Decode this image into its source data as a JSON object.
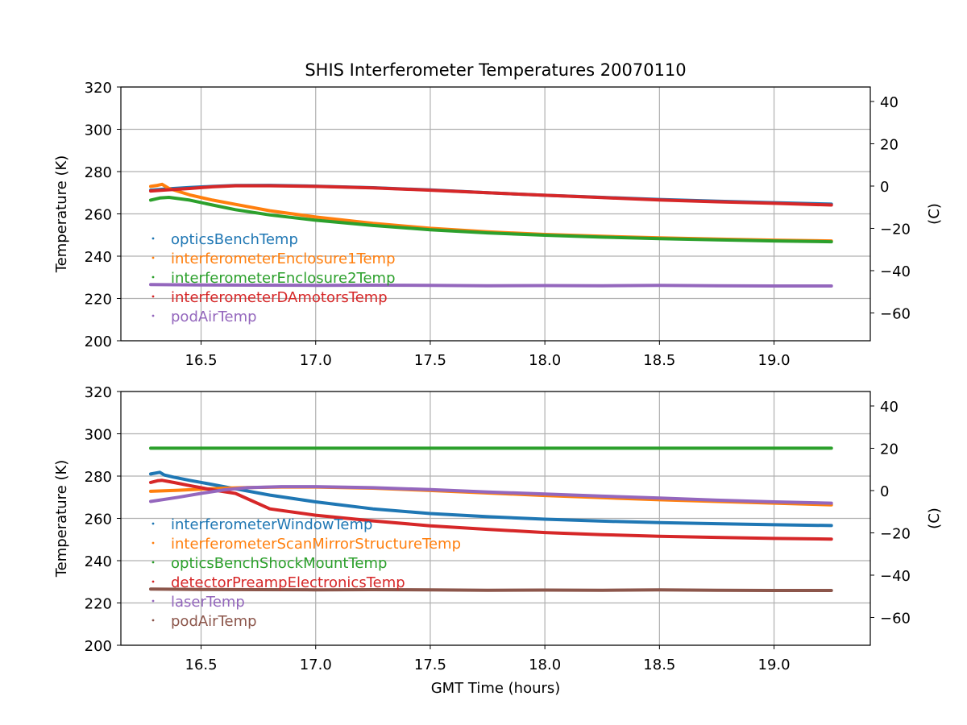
{
  "title": "SHIS Interferometer Temperatures 20070110",
  "xlabel": "GMT Time (hours)",
  "chart_data": [
    {
      "type": "scatter",
      "ylabel": "Temperature (K)",
      "ylabel_right": "(C)",
      "xlim": [
        16.15,
        19.42
      ],
      "ylim": [
        200,
        320
      ],
      "xticks": [
        "16.5",
        "17.0",
        "17.5",
        "18.0",
        "18.5",
        "19.0"
      ],
      "yticks": [
        "200",
        "220",
        "240",
        "260",
        "280",
        "300",
        "320"
      ],
      "yticks_right": [
        "−60",
        "−40",
        "−20",
        "0",
        "20",
        "40"
      ],
      "grid": true,
      "legend_position": "lower-left",
      "series": [
        {
          "name": "opticsBenchTemp",
          "color": "#1f77b4",
          "x": [
            16.28,
            16.35,
            16.45,
            16.55,
            16.65,
            16.8,
            17.0,
            17.25,
            17.5,
            17.75,
            18.0,
            18.25,
            18.5,
            18.75,
            19.0,
            19.25
          ],
          "y": [
            271.2,
            271.8,
            272.5,
            273.0,
            273.4,
            273.5,
            273.1,
            272.4,
            271.3,
            270.0,
            268.8,
            267.8,
            266.8,
            266.0,
            265.3,
            264.6
          ]
        },
        {
          "name": "interferometerEnclosure1Temp",
          "color": "#ff7f0e",
          "x": [
            16.28,
            16.31,
            16.33,
            16.36,
            16.45,
            16.55,
            16.65,
            16.8,
            17.0,
            17.25,
            17.5,
            17.75,
            18.0,
            18.25,
            18.5,
            18.75,
            19.0,
            19.25
          ],
          "y": [
            273.0,
            273.5,
            274.0,
            272.0,
            269.0,
            266.5,
            264.5,
            261.5,
            258.5,
            255.5,
            253.2,
            251.5,
            250.3,
            249.4,
            248.7,
            248.1,
            247.6,
            247.2
          ]
        },
        {
          "name": "interferometerEnclosure2Temp",
          "color": "#2ca02c",
          "x": [
            16.28,
            16.32,
            16.36,
            16.45,
            16.55,
            16.65,
            16.8,
            17.0,
            17.25,
            17.5,
            17.75,
            18.0,
            18.25,
            18.5,
            18.75,
            19.0,
            19.25
          ],
          "y": [
            266.5,
            267.5,
            267.8,
            266.5,
            264.2,
            262.0,
            259.5,
            257.0,
            254.5,
            252.5,
            251.0,
            249.9,
            249.0,
            248.3,
            247.7,
            247.2,
            246.8
          ]
        },
        {
          "name": "interferometerDAmotorsTemp",
          "color": "#d62728",
          "x": [
            16.28,
            16.35,
            16.45,
            16.55,
            16.65,
            16.8,
            17.0,
            17.25,
            17.5,
            17.75,
            18.0,
            18.25,
            18.5,
            18.75,
            19.0,
            19.25
          ],
          "y": [
            270.8,
            271.3,
            272.0,
            272.8,
            273.3,
            273.3,
            273.0,
            272.3,
            271.2,
            270.0,
            268.8,
            267.7,
            266.6,
            265.7,
            265.0,
            264.2
          ]
        },
        {
          "name": "podAirTemp",
          "color": "#9467bd",
          "x": [
            16.28,
            16.5,
            16.75,
            17.0,
            17.25,
            17.5,
            17.75,
            18.0,
            18.25,
            18.5,
            18.75,
            19.0,
            19.25
          ],
          "y": [
            226.6,
            226.4,
            226.3,
            226.2,
            226.3,
            226.2,
            226.0,
            226.1,
            226.0,
            226.2,
            226.0,
            225.9,
            225.9
          ]
        }
      ]
    },
    {
      "type": "scatter",
      "ylabel": "Temperature (K)",
      "ylabel_right": "(C)",
      "xlim": [
        16.15,
        19.42
      ],
      "ylim": [
        200,
        320
      ],
      "xticks": [
        "16.5",
        "17.0",
        "17.5",
        "18.0",
        "18.5",
        "19.0"
      ],
      "yticks": [
        "200",
        "220",
        "240",
        "260",
        "280",
        "300",
        "320"
      ],
      "yticks_right": [
        "−60",
        "−40",
        "−20",
        "0",
        "20",
        "40"
      ],
      "grid": true,
      "legend_position": "lower-left",
      "series": [
        {
          "name": "interferometerWindowTemp",
          "color": "#1f77b4",
          "x": [
            16.28,
            16.32,
            16.34,
            16.38,
            16.45,
            16.55,
            16.65,
            16.8,
            17.0,
            17.25,
            17.5,
            17.75,
            18.0,
            18.25,
            18.5,
            18.75,
            19.0,
            19.25
          ],
          "y": [
            281.0,
            281.8,
            280.5,
            279.5,
            278.0,
            276.0,
            274.0,
            271.0,
            267.8,
            264.5,
            262.3,
            260.8,
            259.6,
            258.7,
            258.0,
            257.5,
            257.0,
            256.6
          ]
        },
        {
          "name": "interferometerScanMirrorStructureTemp",
          "color": "#ff7f0e",
          "x": [
            16.28,
            16.4,
            16.5,
            16.6,
            16.7,
            16.85,
            17.0,
            17.25,
            17.5,
            17.75,
            18.0,
            18.25,
            18.5,
            18.75,
            19.0,
            19.25
          ],
          "y": [
            272.8,
            273.3,
            273.8,
            274.3,
            274.6,
            274.8,
            274.8,
            274.3,
            273.2,
            272.0,
            270.8,
            269.8,
            268.8,
            268.0,
            267.2,
            266.4
          ]
        },
        {
          "name": "opticsBenchShockMountTemp",
          "color": "#2ca02c",
          "x": [
            16.28,
            16.5,
            16.75,
            17.0,
            17.25,
            17.5,
            17.75,
            18.0,
            18.25,
            18.5,
            18.75,
            19.0,
            19.25
          ],
          "y": [
            293.2,
            293.2,
            293.2,
            293.2,
            293.2,
            293.2,
            293.2,
            293.2,
            293.2,
            293.2,
            293.2,
            293.2,
            293.2
          ]
        },
        {
          "name": "detectorPreampElectronicsTemp",
          "color": "#d62728",
          "x": [
            16.28,
            16.31,
            16.33,
            16.38,
            16.45,
            16.55,
            16.65,
            16.8,
            17.0,
            17.25,
            17.5,
            17.75,
            18.0,
            18.25,
            18.5,
            18.75,
            19.0,
            19.25
          ],
          "y": [
            277.0,
            277.8,
            278.0,
            277.0,
            275.5,
            273.5,
            271.8,
            264.5,
            261.5,
            258.8,
            256.5,
            254.8,
            253.3,
            252.3,
            251.5,
            251.0,
            250.5,
            250.2
          ]
        },
        {
          "name": "laserTemp",
          "color": "#9467bd",
          "x": [
            16.28,
            16.4,
            16.5,
            16.6,
            16.7,
            16.85,
            17.0,
            17.25,
            17.5,
            17.75,
            18.0,
            18.25,
            18.5,
            18.75,
            19.0,
            19.25
          ],
          "y": [
            268.0,
            270.0,
            271.8,
            273.5,
            274.5,
            275.0,
            275.0,
            274.5,
            273.6,
            272.5,
            271.5,
            270.5,
            269.6,
            268.6,
            267.8,
            267.2
          ]
        },
        {
          "name": "podAirTemp",
          "color": "#8c564b",
          "x": [
            16.28,
            16.5,
            16.75,
            17.0,
            17.25,
            17.5,
            17.75,
            18.0,
            18.25,
            18.5,
            18.75,
            19.0,
            19.25
          ],
          "y": [
            226.6,
            226.4,
            226.3,
            226.2,
            226.3,
            226.2,
            226.0,
            226.1,
            226.0,
            226.2,
            226.0,
            225.9,
            225.9
          ]
        }
      ]
    }
  ]
}
